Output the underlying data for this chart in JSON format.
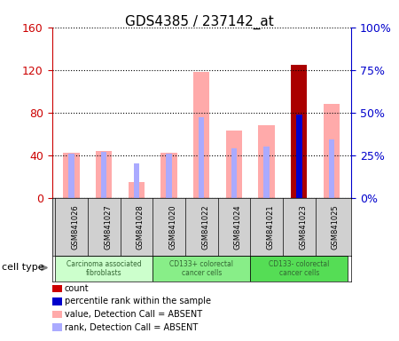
{
  "title": "GDS4385 / 237142_at",
  "samples": [
    "GSM841026",
    "GSM841027",
    "GSM841028",
    "GSM841020",
    "GSM841022",
    "GSM841024",
    "GSM841021",
    "GSM841023",
    "GSM841025"
  ],
  "pink_values": [
    42,
    44,
    15,
    42,
    118,
    63,
    68,
    125,
    88
  ],
  "blue_ranks_pct": [
    26,
    27,
    20,
    26,
    47,
    29,
    30,
    49,
    34
  ],
  "is_count": [
    false,
    false,
    false,
    false,
    false,
    false,
    false,
    true,
    false
  ],
  "left_ylim": [
    0,
    160
  ],
  "right_ylim": [
    0,
    100
  ],
  "left_yticks": [
    0,
    40,
    80,
    120,
    160
  ],
  "right_yticks": [
    0,
    25,
    50,
    75,
    100
  ],
  "right_yticklabels": [
    "0%",
    "25%",
    "50%",
    "75%",
    "100%"
  ],
  "cell_groups": [
    {
      "label": "Carcinoma associated\nfibroblasts",
      "start": 0,
      "end": 2
    },
    {
      "label": "CD133+ colorectal\ncancer cells",
      "start": 3,
      "end": 5
    },
    {
      "label": "CD133- colorectal\ncancer cells",
      "start": 6,
      "end": 8
    }
  ],
  "group_colors": [
    "#ccffcc",
    "#88ee88",
    "#55dd55"
  ],
  "group_text_color": "#336633",
  "pink_color": "#ffaaaa",
  "dark_red_color": "#aa0000",
  "blue_bar_color": "#aaaaff",
  "dark_blue_color": "#0000cc",
  "bar_width": 0.5,
  "legend_colors": [
    "#cc0000",
    "#0000cc",
    "#ffaaaa",
    "#aaaaff"
  ],
  "legend_labels": [
    "count",
    "percentile rank within the sample",
    "value, Detection Call = ABSENT",
    "rank, Detection Call = ABSENT"
  ],
  "cell_type_label": "cell type",
  "background_color": "#ffffff",
  "plot_bg": "#ffffff",
  "left_axis_color": "#cc0000",
  "right_axis_color": "#0000cc"
}
